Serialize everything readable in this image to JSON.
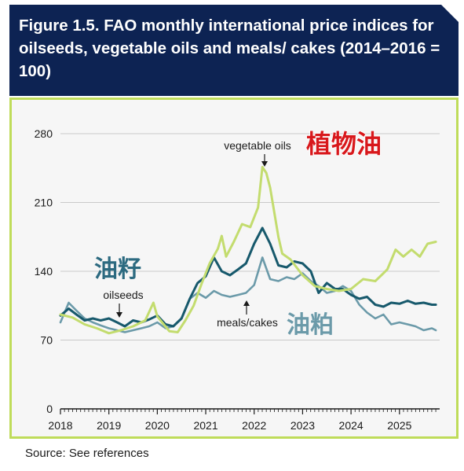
{
  "title": "Figure 1.5. FAO monthly international price indices for oilseeds, vegetable oils and meals/ cakes  (2014–2016 = 100)",
  "source": "Source: See references",
  "colors": {
    "header_bg": "#0d2353",
    "panel_border": "#bfdc5a",
    "vegetable_oils": "#c3dc6e",
    "oilseeds": "#17596c",
    "meals_cakes": "#6b9aa9",
    "chinese_oil_label": "#d8181c",
    "chinese_label": "#2c6a80"
  },
  "chart_data": {
    "type": "line",
    "xlabel": "",
    "ylabel": "",
    "x_ticks": [
      "2018",
      "2019",
      "2020",
      "2021",
      "2022",
      "2023",
      "2024",
      "2025"
    ],
    "y_ticks": [
      0,
      70,
      140,
      210,
      280
    ],
    "xlim": [
      2018.0,
      2025.83
    ],
    "ylim": [
      0,
      280
    ],
    "grid": "horizontal",
    "series": [
      {
        "name": "vegetable oils",
        "x": [
          2018.0,
          2018.25,
          2018.5,
          2018.75,
          2019.0,
          2019.25,
          2019.5,
          2019.75,
          2019.92,
          2020.0,
          2020.25,
          2020.42,
          2020.58,
          2020.75,
          2020.92,
          2021.08,
          2021.25,
          2021.33,
          2021.42,
          2021.58,
          2021.75,
          2021.92,
          2022.08,
          2022.17,
          2022.25,
          2022.33,
          2022.5,
          2022.58,
          2022.75,
          2023.0,
          2023.25,
          2023.5,
          2023.75,
          2024.0,
          2024.25,
          2024.5,
          2024.67,
          2024.75,
          2024.92,
          2025.08,
          2025.25,
          2025.42,
          2025.58,
          2025.75
        ],
        "values": [
          96,
          93,
          86,
          82,
          77,
          80,
          84,
          90,
          108,
          94,
          79,
          78,
          90,
          105,
          128,
          148,
          163,
          176,
          155,
          170,
          188,
          185,
          205,
          246,
          240,
          225,
          175,
          158,
          152,
          136,
          125,
          122,
          120,
          122,
          132,
          130,
          138,
          142,
          162,
          155,
          162,
          155,
          168,
          170
        ]
      },
      {
        "name": "oilseeds",
        "x": [
          2018.0,
          2018.17,
          2018.33,
          2018.5,
          2018.67,
          2018.83,
          2019.0,
          2019.17,
          2019.33,
          2019.5,
          2019.67,
          2019.83,
          2020.0,
          2020.17,
          2020.33,
          2020.5,
          2020.67,
          2020.83,
          2021.0,
          2021.17,
          2021.33,
          2021.5,
          2021.67,
          2021.83,
          2022.0,
          2022.17,
          2022.33,
          2022.5,
          2022.67,
          2022.83,
          2023.0,
          2023.17,
          2023.33,
          2023.5,
          2023.67,
          2023.83,
          2024.0,
          2024.17,
          2024.33,
          2024.5,
          2024.67,
          2024.83,
          2025.0,
          2025.17,
          2025.33,
          2025.5,
          2025.67,
          2025.75
        ],
        "values": [
          95,
          102,
          96,
          90,
          92,
          90,
          92,
          88,
          84,
          90,
          88,
          91,
          95,
          86,
          84,
          92,
          112,
          128,
          135,
          154,
          140,
          136,
          142,
          148,
          168,
          184,
          168,
          146,
          144,
          150,
          148,
          140,
          118,
          128,
          122,
          122,
          116,
          112,
          114,
          106,
          104,
          108,
          107,
          110,
          107,
          108,
          106,
          106
        ]
      },
      {
        "name": "meals/cakes",
        "x": [
          2018.0,
          2018.17,
          2018.33,
          2018.5,
          2018.67,
          2018.83,
          2019.0,
          2019.17,
          2019.33,
          2019.5,
          2019.67,
          2019.83,
          2020.0,
          2020.17,
          2020.33,
          2020.5,
          2020.67,
          2020.83,
          2021.0,
          2021.17,
          2021.33,
          2021.5,
          2021.67,
          2021.83,
          2022.0,
          2022.17,
          2022.33,
          2022.5,
          2022.67,
          2022.83,
          2023.0,
          2023.17,
          2023.33,
          2023.5,
          2023.67,
          2023.83,
          2024.0,
          2024.17,
          2024.33,
          2024.5,
          2024.67,
          2024.83,
          2025.0,
          2025.17,
          2025.33,
          2025.5,
          2025.67,
          2025.75
        ],
        "values": [
          88,
          108,
          100,
          92,
          88,
          85,
          82,
          80,
          78,
          80,
          82,
          84,
          88,
          82,
          84,
          92,
          112,
          118,
          113,
          120,
          116,
          114,
          116,
          118,
          126,
          154,
          132,
          130,
          134,
          132,
          138,
          130,
          125,
          118,
          120,
          125,
          120,
          106,
          98,
          92,
          96,
          86,
          88,
          86,
          84,
          80,
          82,
          80
        ]
      }
    ],
    "annotations": [
      "vegetable oils",
      "oilseeds",
      "meals/cakes"
    ],
    "overlay_labels": {
      "vegetable_oils": "植物油",
      "oilseeds": "油籽",
      "meals_cakes": "油粕"
    }
  }
}
